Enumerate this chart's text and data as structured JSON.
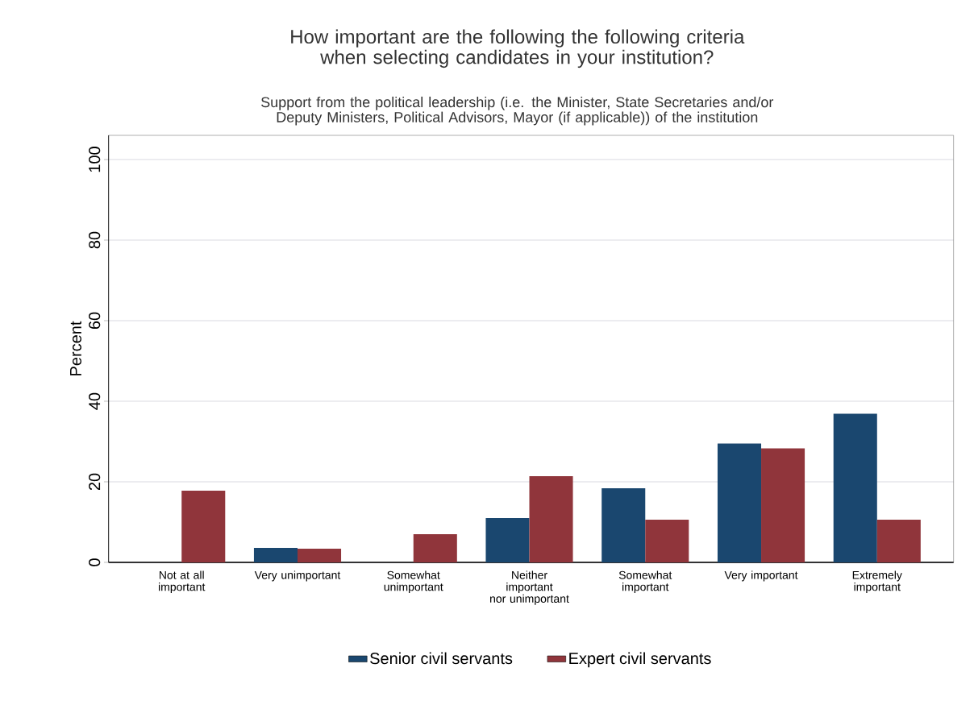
{
  "chart_data": {
    "type": "bar",
    "title": "How important are the following the following criteria when selecting candidates in your institution?",
    "subtitle": "Support from the political leadership (i.e. the Minister, State Secretaries and/or Deputy Ministers, Political Advisors, Mayor (if applicable)) of the institution",
    "ylabel": "Percent",
    "categories": [
      "Not at all important",
      "Very unimportant",
      "Somewhat unimportant",
      "Neither important nor unimportant",
      "Somewhat important",
      "Very important",
      "Extremely important"
    ],
    "series": [
      {
        "name": "Senior civil servants",
        "color": "#1a476f",
        "values": [
          0,
          3.6,
          0,
          11.0,
          18.4,
          29.5,
          36.9
        ]
      },
      {
        "name": "Expert civil servants",
        "color": "#90353b",
        "values": [
          17.8,
          3.4,
          7.0,
          21.4,
          10.6,
          28.3,
          10.6
        ]
      }
    ],
    "ylim": [
      0,
      106
    ],
    "yticks": [
      0,
      20,
      40,
      60,
      80,
      100
    ],
    "grid": "y",
    "legend": "bottom"
  }
}
